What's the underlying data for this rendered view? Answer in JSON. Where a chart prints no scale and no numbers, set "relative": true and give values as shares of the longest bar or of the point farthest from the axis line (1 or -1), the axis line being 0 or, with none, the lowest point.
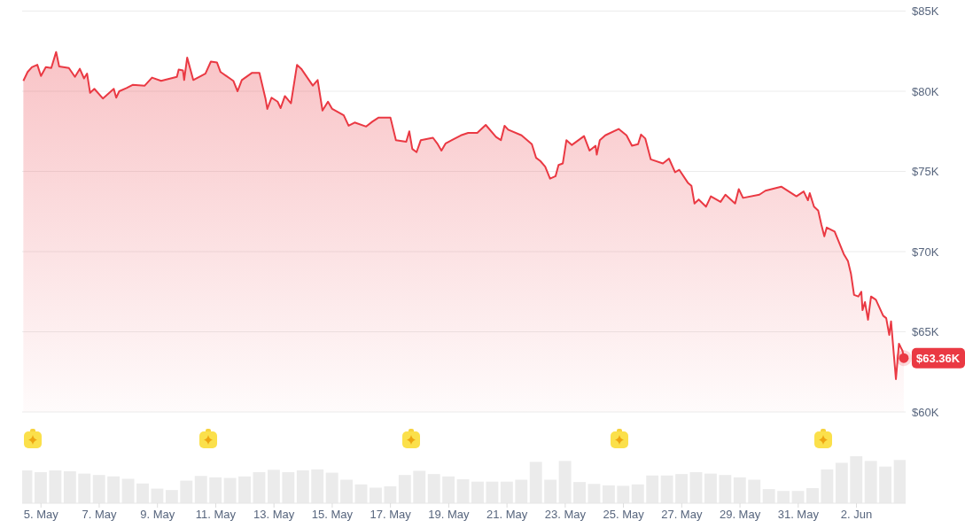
{
  "chart_data": [
    {
      "type": "area",
      "x": [
        "--05-04T09:30",
        "--05-04T13:00",
        "--05-04T16:30",
        "--05-04T21:00",
        "--05-05T00:00",
        "--05-05T04:00",
        "--05-05T08:30",
        "--05-05T12:30",
        "--05-05T15:00",
        "--05-05T23:00",
        "--05-06T04:00",
        "--05-06T08:00",
        "--05-06T11:30",
        "--05-06T14:00",
        "--05-06T16:30",
        "--05-06T20:00",
        "--05-07T03:00",
        "--05-07T12:00",
        "--05-07T14:00",
        "--05-07T16:30",
        "--05-07T22:30",
        "--05-08T03:30",
        "--05-08T13:30",
        "--05-08T19:30",
        "--05-09T03:00",
        "--05-09T16:00",
        "--05-09T17:30",
        "--05-09T21:00",
        "--05-09T22:00",
        "--05-10T00:30",
        "--05-10T05:30",
        "--05-10T15:30",
        "--05-10T20:00",
        "--05-11T01:00",
        "--05-11T04:00",
        "--05-11T14:30",
        "--05-11T18:00",
        "--05-11T21:30",
        "--05-12T06:00",
        "--05-12T12:00",
        "--05-12T17:00",
        "--05-12T18:30",
        "--05-12T22:00",
        "--05-13T03:00",
        "--05-13T05:30",
        "--05-13T09:00",
        "--05-13T14:00",
        "--05-13T19:00",
        "--05-13T22:30",
        "--05-14T08:00",
        "--05-14T12:00",
        "--05-14T16:00",
        "--05-14T20:30",
        "--05-15T00:00",
        "--05-15T09:30",
        "--05-15T13:30",
        "--05-15T18:30",
        "--05-16T04:00",
        "--05-16T09:00",
        "--05-16T14:00",
        "--05-17T00:00",
        "--05-17T04:30",
        "--05-17T13:00",
        "--05-17T15:30",
        "--05-17T18:00",
        "--05-17T21:30",
        "--05-18T01:00",
        "--05-18T11:00",
        "--05-18T14:30",
        "--05-18T18:00",
        "--05-18T21:30",
        "--05-19T10:00",
        "--05-19T16:00",
        "--05-19T23:30",
        "--05-20T06:30",
        "--05-20T15:00",
        "--05-20T19:00",
        "--05-20T22:00",
        "--05-21T01:00",
        "--05-21T12:00",
        "--05-21T20:30",
        "--05-22T00:00",
        "--05-22T03:30",
        "--05-22T07:30",
        "--05-22T11:30",
        "--05-22T16:00",
        "--05-22T18:30",
        "--05-22T22:00",
        "--05-23T01:00",
        "--05-23T05:30",
        "--05-23T15:30",
        "--05-23T20:00",
        "--05-24T01:00",
        "--05-24T02:00",
        "--05-24T04:30",
        "--05-24T09:00",
        "--05-24T20:00",
        "--05-25T02:30",
        "--05-25T07:00",
        "--05-25T12:00",
        "--05-25T14:30",
        "--05-25T18:00",
        "--05-25T22:30",
        "--05-26T08:30",
        "--05-26T13:30",
        "--05-26T18:30",
        "--05-26T22:00",
        "--05-27T05:00",
        "--05-27T08:00",
        "--05-27T10:30",
        "--05-27T14:00",
        "--05-27T20:00",
        "--05-28T00:00",
        "--05-28T08:00",
        "--05-28T12:00",
        "--05-28T20:00",
        "--05-28T23:00",
        "--05-29T02:30",
        "--05-29T16:00",
        "--05-29T21:00",
        "--05-30T10:00",
        "--05-30T22:30",
        "--05-31T04:30",
        "--05-31T08:00",
        "--05-31T09:30",
        "--05-31T13:00",
        "--05-31T16:30",
        "--05-31T19:00",
        "--05-31T21:30",
        "--05-31T23:30",
        "--06-01T06:00",
        "--06-01T09:30",
        "--06-01T13:30",
        "--06-01T17:00",
        "--06-01T19:30",
        "--06-01T22:00",
        "--06-02T01:30",
        "--06-02T04:00",
        "--06-02T05:00",
        "--06-02T07:00",
        "--06-02T09:30",
        "--06-02T12:00",
        "--06-02T16:00",
        "--06-02T22:00",
        "--06-03T00:30",
        "--06-03T03:00",
        "--06-03T04:30",
        "--06-03T08:30",
        "--06-03T11:00",
        "--06-03T14:00",
        "--06-03T15:00"
      ],
      "series": [
        {
          "color": "#ea3943",
          "values": [
            80650,
            81200,
            81500,
            81650,
            80950,
            81500,
            81450,
            82450,
            81550,
            81450,
            80900,
            81400,
            80800,
            81100,
            79900,
            80150,
            79550,
            80150,
            79600,
            80000,
            80200,
            80400,
            80350,
            80850,
            80650,
            80900,
            81350,
            81300,
            80700,
            82100,
            80700,
            81100,
            81850,
            81800,
            81200,
            80650,
            80000,
            80700,
            81150,
            81150,
            79550,
            78900,
            79600,
            79350,
            78950,
            79700,
            79250,
            81650,
            81400,
            80350,
            80700,
            78800,
            79350,
            78900,
            78500,
            77850,
            78050,
            77800,
            78100,
            78350,
            78350,
            76950,
            76850,
            77500,
            76400,
            76200,
            76950,
            77100,
            76750,
            76300,
            76750,
            77250,
            77400,
            77400,
            77900,
            77150,
            76950,
            77850,
            77600,
            77250,
            76700,
            75850,
            75650,
            75300,
            74550,
            74700,
            75400,
            75500,
            76950,
            76650,
            77200,
            76300,
            76600,
            76050,
            76950,
            77250,
            77650,
            77250,
            76600,
            76700,
            77300,
            77050,
            75750,
            75500,
            75800,
            74950,
            75100,
            74300,
            74100,
            73000,
            73250,
            72800,
            73450,
            73100,
            73550,
            73000,
            73900,
            73350,
            73550,
            73800,
            74050,
            73450,
            73750,
            73200,
            73650,
            72800,
            72550,
            71700,
            70950,
            71500,
            71250,
            70600,
            69850,
            69400,
            68600,
            67300,
            67200,
            67500,
            66350,
            66850,
            65750,
            67200,
            67000,
            66000,
            65850,
            64800,
            65650,
            62050,
            64250,
            63800,
            63360
          ]
        }
      ],
      "xlim": [
        "--05-04T08:30",
        "--06-03T16:30"
      ],
      "ylim": [
        60000,
        85000
      ],
      "yticks": [
        {
          "value": 60000,
          "label": "$60K"
        },
        {
          "value": 65000,
          "label": "$65K"
        },
        {
          "value": 70000,
          "label": "$70K"
        },
        {
          "value": 75000,
          "label": "$75K"
        },
        {
          "value": 80000,
          "label": "$80K"
        },
        {
          "value": 85000,
          "label": "$85K"
        }
      ],
      "grid": "y",
      "tick_labels": "y",
      "annotations": [
        {
          "text": "$63.36K",
          "x": "--06-03T15:00",
          "y": 63360
        }
      ]
    },
    {
      "type": "bar",
      "relative": true,
      "x": [
        "--05-04T12:00",
        "--05-05T00:00",
        "--05-05T12:00",
        "--05-06T00:00",
        "--05-06T12:00",
        "--05-07T00:00",
        "--05-07T12:00",
        "--05-08T00:00",
        "--05-08T12:00",
        "--05-09T00:00",
        "--05-09T12:00",
        "--05-10T00:00",
        "--05-10T12:00",
        "--05-11T00:00",
        "--05-11T12:00",
        "--05-12T00:00",
        "--05-12T12:00",
        "--05-13T00:00",
        "--05-13T12:00",
        "--05-14T00:00",
        "--05-14T12:00",
        "--05-15T00:00",
        "--05-15T12:00",
        "--05-16T00:00",
        "--05-16T12:00",
        "--05-17T00:00",
        "--05-17T12:00",
        "--05-18T00:00",
        "--05-18T12:00",
        "--05-19T00:00",
        "--05-19T12:00",
        "--05-20T00:00",
        "--05-20T12:00",
        "--05-21T00:00",
        "--05-21T12:00",
        "--05-22T00:00",
        "--05-22T12:00",
        "--05-23T00:00",
        "--05-23T12:00",
        "--05-24T00:00",
        "--05-24T12:00",
        "--05-25T00:00",
        "--05-25T12:00",
        "--05-26T00:00",
        "--05-26T12:00",
        "--05-27T00:00",
        "--05-27T12:00",
        "--05-28T00:00",
        "--05-28T12:00",
        "--05-29T00:00",
        "--05-29T12:00",
        "--05-30T00:00",
        "--05-30T12:00",
        "--05-31T00:00",
        "--05-31T12:00",
        "--06-01T00:00",
        "--06-01T12:00",
        "--06-02T00:00",
        "--06-02T12:00",
        "--06-03T00:00",
        "--06-03T12:00"
      ],
      "series": [
        {
          "color": "#ebebeb",
          "values": [
            0.7,
            0.66,
            0.7,
            0.68,
            0.63,
            0.6,
            0.57,
            0.52,
            0.42,
            0.31,
            0.28,
            0.48,
            0.58,
            0.55,
            0.54,
            0.57,
            0.66,
            0.71,
            0.66,
            0.7,
            0.72,
            0.65,
            0.5,
            0.4,
            0.33,
            0.36,
            0.6,
            0.69,
            0.62,
            0.57,
            0.51,
            0.46,
            0.46,
            0.46,
            0.5,
            0.88,
            0.5,
            0.9,
            0.45,
            0.41,
            0.38,
            0.37,
            0.4,
            0.59,
            0.59,
            0.62,
            0.66,
            0.63,
            0.6,
            0.55,
            0.5,
            0.3,
            0.26,
            0.26,
            0.32,
            0.72,
            0.86,
            1,
            0.9,
            0.78,
            0.92
          ]
        }
      ],
      "xlim": [
        "--05-04T08:30",
        "--06-03T16:30"
      ],
      "xticks": [
        {
          "value": "--05-05",
          "label": "5. May"
        },
        {
          "value": "--05-07",
          "label": "7. May"
        },
        {
          "value": "--05-09",
          "label": "9. May"
        },
        {
          "value": "--05-11",
          "label": "11. May"
        },
        {
          "value": "--05-13",
          "label": "13. May"
        },
        {
          "value": "--05-15",
          "label": "15. May"
        },
        {
          "value": "--05-17",
          "label": "17. May"
        },
        {
          "value": "--05-19",
          "label": "19. May"
        },
        {
          "value": "--05-21",
          "label": "21. May"
        },
        {
          "value": "--05-23",
          "label": "23. May"
        },
        {
          "value": "--05-25",
          "label": "25. May"
        },
        {
          "value": "--05-27",
          "label": "27. May"
        },
        {
          "value": "--05-29",
          "label": "29. May"
        },
        {
          "value": "--05-31",
          "label": "31. May"
        },
        {
          "value": "--06-02",
          "label": "2. Jun"
        }
      ],
      "tick_labels": "x"
    }
  ]
}
